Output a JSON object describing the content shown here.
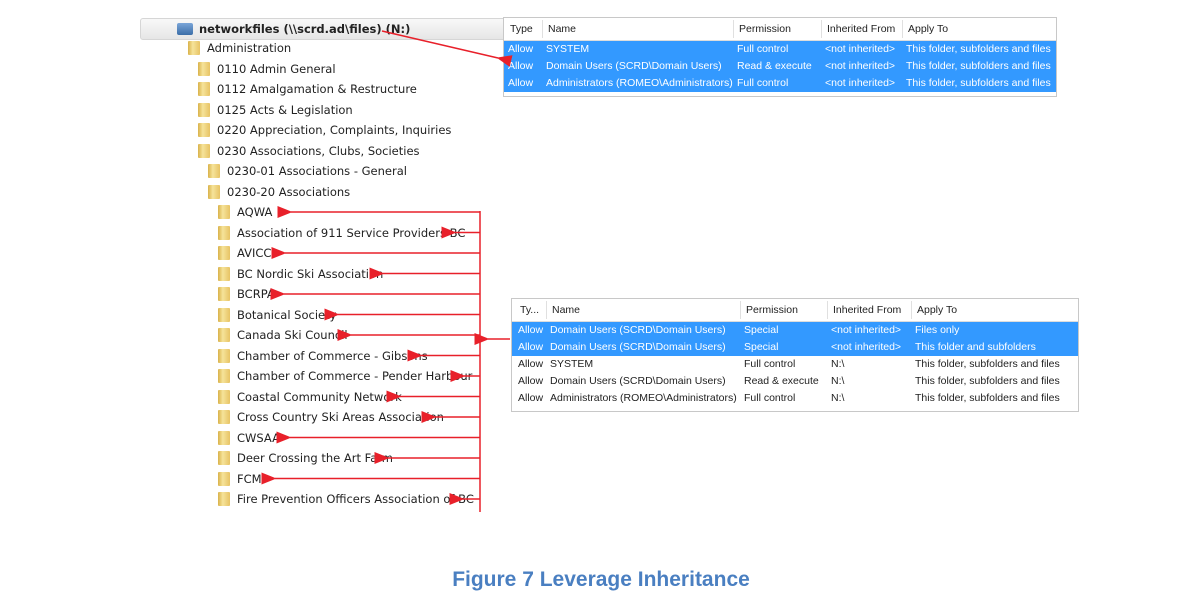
{
  "tree": {
    "root": "networkfiles (\\\\scrd.ad\\files) (N:)",
    "level1": [
      "Administration"
    ],
    "level2": [
      "0110 Admin General",
      "0112 Amalgamation & Restructure",
      "0125 Acts & Legislation",
      "0220 Appreciation, Complaints, Inquiries",
      "0230 Associations, Clubs, Societies"
    ],
    "level3": [
      "0230-01 Associations - General",
      "0230-20 Associations"
    ],
    "level4": [
      "AQWA",
      "Association of 911 Service Providers BC",
      "AVICC",
      "BC Nordic Ski Association",
      "BCRPA",
      "Botanical Society",
      "Canada Ski Council",
      "Chamber of Commerce - Gibsons",
      "Chamber of Commerce - Pender Harbour",
      "Coastal Community Network",
      "Cross Country Ski Areas Association",
      "CWSAA",
      "Deer Crossing the Art Farm",
      "FCM",
      "Fire Prevention Officers Association of BC"
    ]
  },
  "table_top": {
    "headers": [
      "Type",
      "Name",
      "Permission",
      "Inherited From",
      "Apply To"
    ],
    "rows": [
      {
        "selected": true,
        "cells": [
          "Allow",
          "SYSTEM",
          "Full control",
          "<not inherited>",
          "This folder, subfolders and files"
        ]
      },
      {
        "selected": true,
        "cells": [
          "Allow",
          "Domain Users (SCRD\\Domain Users)",
          "Read & execute",
          "<not inherited>",
          "This folder, subfolders and files"
        ]
      },
      {
        "selected": true,
        "cells": [
          "Allow",
          "Administrators (ROMEO\\Administrators)",
          "Full control",
          "<not inherited>",
          "This folder, subfolders and files"
        ]
      }
    ]
  },
  "table_bottom": {
    "headers": [
      "Ty...",
      "Name",
      "Permission",
      "Inherited From",
      "Apply To"
    ],
    "rows": [
      {
        "selected": true,
        "cells": [
          "Allow",
          "Domain Users (SCRD\\Domain Users)",
          "Special",
          "<not inherited>",
          "Files only"
        ]
      },
      {
        "selected": true,
        "cells": [
          "Allow",
          "Domain Users (SCRD\\Domain Users)",
          "Special",
          "<not inherited>",
          "This folder and subfolders"
        ]
      },
      {
        "selected": false,
        "cells": [
          "Allow",
          "SYSTEM",
          "Full control",
          "N:\\",
          "This folder, subfolders and files"
        ]
      },
      {
        "selected": false,
        "cells": [
          "Allow",
          "Domain Users (SCRD\\Domain Users)",
          "Read & execute",
          "N:\\",
          "This folder, subfolders and files"
        ]
      },
      {
        "selected": false,
        "cells": [
          "Allow",
          "Administrators (ROMEO\\Administrators)",
          "Full control",
          "N:\\",
          "This folder, subfolders and files"
        ]
      }
    ]
  },
  "caption": "Figure 7 Leverage Inheritance",
  "colors": {
    "selection": "#3399ff",
    "arrow": "#e8202a",
    "caption": "#4a7fc1"
  }
}
